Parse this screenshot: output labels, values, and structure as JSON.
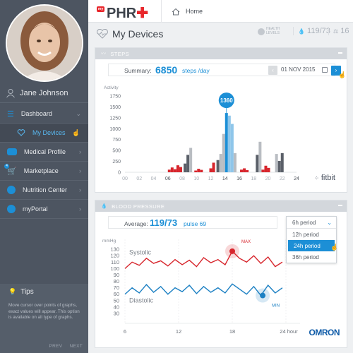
{
  "app": {
    "logo_prefix": "my",
    "logo_text": "PHR",
    "logo_cross": "✚"
  },
  "topnav": {
    "home_label": "Home",
    "home_icon": "house-icon"
  },
  "user": {
    "name": "Jane Johnson"
  },
  "sidebar": {
    "items": [
      {
        "label": "Dashboard",
        "icon": "menu-icon"
      },
      {
        "label": "My Devices",
        "icon": "heartbeat-icon"
      },
      {
        "label": "Medical Profile",
        "icon": "id-card-icon"
      },
      {
        "label": "Marketplace",
        "icon": "cart-icon",
        "badge": "4"
      },
      {
        "label": "Nutrition Center",
        "icon": "globe-icon"
      },
      {
        "label": "myPortal",
        "icon": "portal-icon"
      }
    ],
    "tips": {
      "title": "Tips",
      "body": "Move cursor over points of graphs, exact values will appear. This option is available on all type of graphs.",
      "prev": "PREV",
      "next": "NEXT"
    }
  },
  "page": {
    "title": "My Devices",
    "health_levels": "HEALTH LEVELS",
    "stat_bp": "119/73",
    "stat_other": "16"
  },
  "steps_card": {
    "header": "STEPS",
    "summary_label": "Summary:",
    "summary_value": "6850",
    "summary_unit": "steps /day",
    "date": "01 NOV 2015",
    "brand": "fitbit",
    "colors": {
      "red": "#d7252c",
      "dark": "#5b6069",
      "light": "#b9bdc2",
      "blue": "#1c8fd6",
      "lightblue": "#8fc6ea"
    }
  },
  "bp_card": {
    "header": "BLOOD PRESSURE",
    "avg_label": "Average:",
    "avg_value": "119/73",
    "pulse": "pulse 69",
    "period_selected": "6h period",
    "period_options": [
      "12h period",
      "24h period",
      "36h period"
    ],
    "brand": "OMRON"
  },
  "chart_data": [
    {
      "type": "bar",
      "title": "",
      "ylabel": "Activity",
      "ylim": [
        0,
        1750
      ],
      "yticks": [
        0,
        250,
        500,
        750,
        1000,
        1250,
        1500,
        1750
      ],
      "xticks": [
        "00",
        "02",
        "04",
        "06",
        "08",
        "10",
        "12",
        "14",
        "16",
        "18",
        "20",
        "22",
        "24"
      ],
      "highlight_label": "1360",
      "bars": [
        {
          "x": 6.2,
          "v": 60,
          "c": "red"
        },
        {
          "x": 6.6,
          "v": 110,
          "c": "red"
        },
        {
          "x": 7.0,
          "v": 70,
          "c": "red"
        },
        {
          "x": 7.4,
          "v": 160,
          "c": "red"
        },
        {
          "x": 7.8,
          "v": 120,
          "c": "red"
        },
        {
          "x": 8.4,
          "v": 200,
          "c": "dark"
        },
        {
          "x": 8.8,
          "v": 400,
          "c": "dark"
        },
        {
          "x": 9.2,
          "v": 560,
          "c": "light"
        },
        {
          "x": 9.9,
          "v": 40,
          "c": "red"
        },
        {
          "x": 10.3,
          "v": 80,
          "c": "red"
        },
        {
          "x": 10.7,
          "v": 55,
          "c": "red"
        },
        {
          "x": 12.0,
          "v": 90,
          "c": "red"
        },
        {
          "x": 12.4,
          "v": 220,
          "c": "red"
        },
        {
          "x": 13.0,
          "v": 280,
          "c": "dark"
        },
        {
          "x": 13.4,
          "v": 420,
          "c": "light"
        },
        {
          "x": 13.8,
          "v": 880,
          "c": "light"
        },
        {
          "x": 14.2,
          "v": 1360,
          "c": "blue"
        },
        {
          "x": 14.6,
          "v": 1300,
          "c": "lightblue"
        },
        {
          "x": 15.0,
          "v": 1110,
          "c": "lightblue"
        },
        {
          "x": 15.4,
          "v": 440,
          "c": "light"
        },
        {
          "x": 16.3,
          "v": 60,
          "c": "red"
        },
        {
          "x": 16.7,
          "v": 90,
          "c": "red"
        },
        {
          "x": 17.1,
          "v": 50,
          "c": "red"
        },
        {
          "x": 18.5,
          "v": 400,
          "c": "dark"
        },
        {
          "x": 18.9,
          "v": 700,
          "c": "light"
        },
        {
          "x": 19.3,
          "v": 60,
          "c": "red"
        },
        {
          "x": 19.7,
          "v": 150,
          "c": "red"
        },
        {
          "x": 20.1,
          "v": 100,
          "c": "red"
        },
        {
          "x": 21.2,
          "v": 420,
          "c": "light"
        },
        {
          "x": 21.6,
          "v": 260,
          "c": "dark"
        },
        {
          "x": 22.0,
          "v": 440,
          "c": "dark"
        }
      ]
    },
    {
      "type": "line",
      "title": "",
      "ylabel": "mmHg",
      "ylim": [
        30,
        140
      ],
      "yticks": [
        30,
        50,
        70,
        90,
        110,
        130
      ],
      "yticks_extra": [
        40,
        60,
        80,
        100,
        120
      ],
      "xticks": [
        "6",
        "12",
        "18",
        "24 hour"
      ],
      "x_range": [
        6,
        24
      ],
      "series": [
        {
          "name": "Systolic",
          "color": "#d7252c",
          "x": [
            6,
            6.8,
            7.6,
            8.4,
            9.2,
            10,
            10.8,
            11.6,
            12.4,
            13.2,
            14,
            14.8,
            15.6,
            16.4,
            17.2,
            18,
            18.8,
            19.6,
            20.4,
            21.2,
            22,
            22.8,
            23.6
          ],
          "values": [
            100,
            110,
            105,
            116,
            108,
            112,
            104,
            114,
            106,
            113,
            103,
            117,
            109,
            114,
            106,
            127,
            116,
            110,
            120,
            108,
            118,
            103,
            110
          ],
          "marker": {
            "x": 18,
            "y": 127,
            "label": "MAX"
          }
        },
        {
          "name": "Diastolic",
          "color": "#1c80c3",
          "x": [
            6,
            6.8,
            7.6,
            8.4,
            9.2,
            10,
            10.8,
            11.6,
            12.4,
            13.2,
            14,
            14.8,
            15.6,
            16.4,
            17.2,
            18,
            18.8,
            19.6,
            20.4,
            21.2,
            22,
            22.8,
            23.6
          ],
          "values": [
            60,
            70,
            62,
            75,
            63,
            72,
            60,
            70,
            64,
            74,
            61,
            72,
            63,
            70,
            62,
            76,
            68,
            60,
            72,
            58,
            74,
            62,
            70
          ],
          "marker": {
            "x": 21.4,
            "y": 58,
            "label": "MIN"
          }
        }
      ]
    }
  ]
}
